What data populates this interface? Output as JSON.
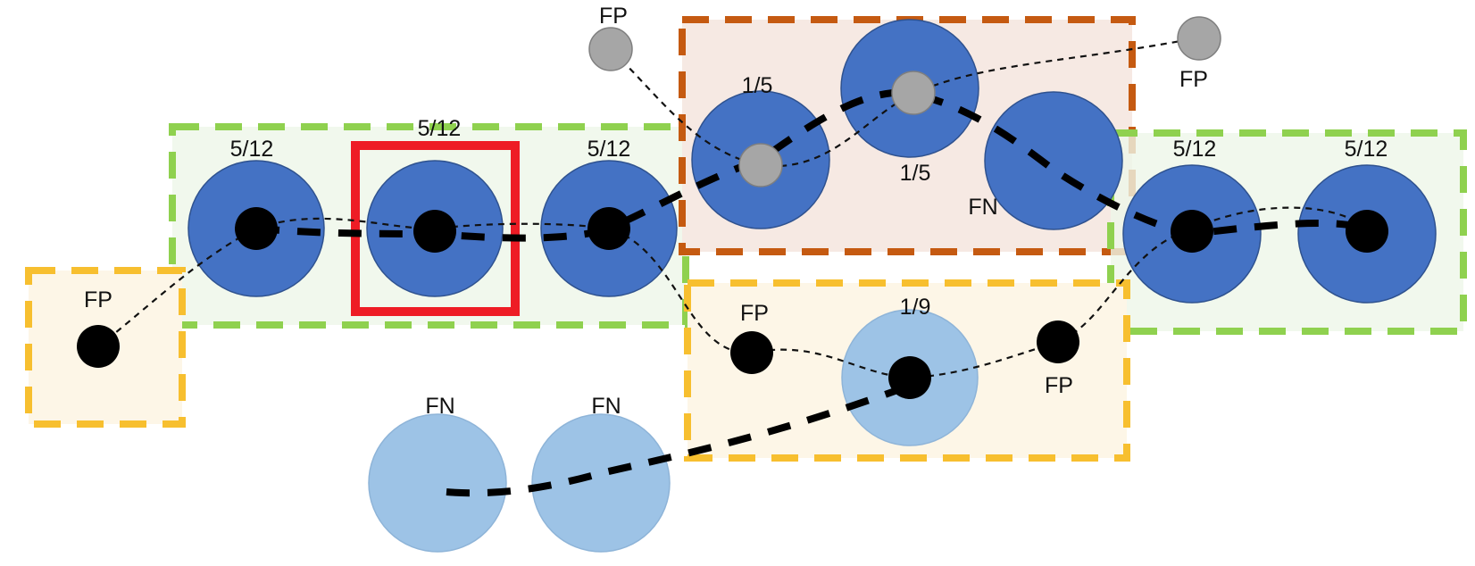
{
  "colors": {
    "gt_object": "#4472c4",
    "missed_object": "#9dc3e6",
    "detection": "#000000",
    "discarded_detection": "#a6a6a6",
    "group_green": "#8fd14f",
    "group_green_fill": "#eef6e8",
    "group_orange": "#c55a11",
    "group_orange_fill": "#f6e9e3",
    "group_yellow": "#f7bf2f",
    "group_yellow_fill": "#fdf6e7",
    "highlight": "#ee1c25"
  },
  "labels": {
    "fp_isolated": "FP",
    "green_left_1": "5/12",
    "green_left_2": "5/12",
    "green_left_3": "5/12",
    "orange_left": "1/5",
    "orange_middle": "1/5",
    "orange_right": "FN",
    "fp_top_left": "FP",
    "fp_top_right": "FP",
    "green_right_1": "5/12",
    "green_right_2": "5/12",
    "yellow_fp_left": "FP",
    "yellow_center": "1/9",
    "yellow_fp_right": "FP",
    "fn_bottom_left": "FN",
    "fn_bottom_right": "FN"
  }
}
